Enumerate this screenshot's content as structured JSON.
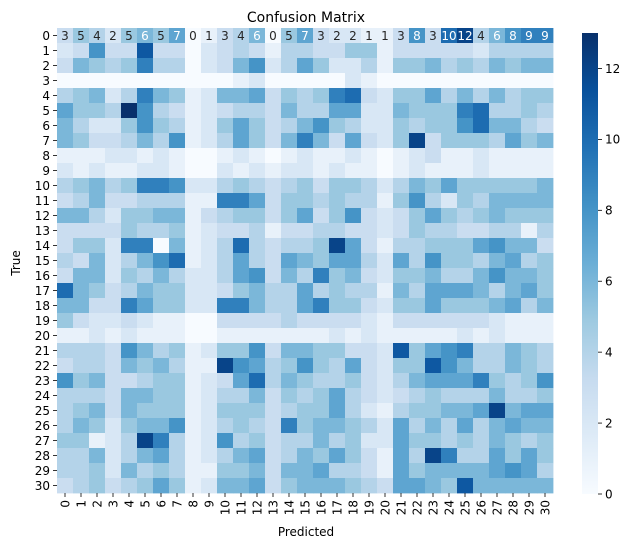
{
  "chart_data": {
    "type": "heatmap",
    "title": "Confusion Matrix",
    "xlabel": "Predicted",
    "ylabel": "True",
    "row_labels": [
      "0",
      "1",
      "2",
      "3",
      "4",
      "5",
      "6",
      "7",
      "8",
      "9",
      "10",
      "11",
      "12",
      "13",
      "14",
      "15",
      "16",
      "17",
      "18",
      "19",
      "20",
      "21",
      "22",
      "23",
      "24",
      "25",
      "26",
      "27",
      "28",
      "29",
      "30"
    ],
    "col_labels": [
      "0",
      "1",
      "2",
      "3",
      "4",
      "5",
      "6",
      "7",
      "8",
      "9",
      "10",
      "11",
      "12",
      "13",
      "14",
      "15",
      "16",
      "17",
      "18",
      "19",
      "20",
      "21",
      "22",
      "23",
      "24",
      "25",
      "26",
      "27",
      "28",
      "29",
      "30"
    ],
    "annotated_row": 0,
    "matrix": [
      [
        3,
        5,
        4,
        2,
        5,
        6,
        5,
        7,
        0,
        1,
        3,
        4,
        6,
        0,
        5,
        7,
        3,
        2,
        2,
        1,
        1,
        3,
        8,
        3,
        10,
        12,
        4,
        6,
        8,
        9,
        9
      ],
      [
        2,
        3,
        8,
        3,
        3,
        11,
        3,
        3,
        0,
        2,
        3,
        4,
        3,
        1,
        4,
        4,
        3,
        3,
        5,
        5,
        1,
        3,
        3,
        3,
        3,
        3,
        2,
        4,
        4,
        4,
        4
      ],
      [
        3,
        6,
        5,
        4,
        5,
        9,
        4,
        4,
        0,
        2,
        3,
        6,
        8,
        2,
        4,
        7,
        5,
        2,
        2,
        4,
        1,
        5,
        5,
        6,
        4,
        5,
        4,
        6,
        5,
        6,
        6
      ],
      [
        0,
        0,
        0,
        0,
        0,
        0,
        0,
        0,
        0,
        0,
        0,
        1,
        2,
        0,
        0,
        0,
        0,
        0,
        2,
        1,
        0,
        0,
        0,
        0,
        0,
        0,
        0,
        0,
        0,
        0,
        0
      ],
      [
        4,
        5,
        6,
        2,
        4,
        9,
        6,
        5,
        1,
        2,
        6,
        6,
        7,
        3,
        5,
        4,
        5,
        9,
        10,
        3,
        2,
        5,
        5,
        7,
        4,
        6,
        4,
        6,
        4,
        5,
        5
      ],
      [
        7,
        5,
        5,
        4,
        13,
        8,
        4,
        3,
        1,
        2,
        3,
        4,
        4,
        3,
        6,
        4,
        4,
        7,
        7,
        2,
        2,
        6,
        5,
        5,
        5,
        9,
        10,
        4,
        4,
        5,
        4
      ],
      [
        6,
        4,
        2,
        2,
        5,
        8,
        5,
        4,
        1,
        2,
        5,
        7,
        5,
        3,
        4,
        6,
        8,
        5,
        4,
        2,
        2,
        5,
        4,
        5,
        5,
        8,
        10,
        6,
        6,
        4,
        3
      ],
      [
        6,
        5,
        3,
        3,
        4,
        6,
        4,
        8,
        1,
        2,
        4,
        7,
        5,
        3,
        6,
        9,
        6,
        3,
        7,
        3,
        2,
        5,
        12,
        3,
        5,
        5,
        5,
        4,
        7,
        5,
        6
      ],
      [
        1,
        1,
        1,
        2,
        2,
        1,
        2,
        1,
        0,
        0,
        1,
        2,
        1,
        0,
        1,
        2,
        1,
        1,
        2,
        1,
        0,
        1,
        2,
        3,
        1,
        1,
        2,
        1,
        1,
        1,
        1
      ],
      [
        2,
        1,
        2,
        1,
        1,
        2,
        2,
        1,
        0,
        0,
        2,
        1,
        2,
        1,
        2,
        2,
        1,
        2,
        1,
        1,
        0,
        1,
        2,
        1,
        1,
        1,
        2,
        1,
        1,
        1,
        1
      ],
      [
        4,
        5,
        6,
        4,
        5,
        9,
        9,
        8,
        2,
        2,
        4,
        5,
        4,
        3,
        4,
        5,
        3,
        5,
        5,
        4,
        2,
        4,
        6,
        5,
        7,
        5,
        5,
        5,
        5,
        5,
        6
      ],
      [
        3,
        4,
        6,
        3,
        3,
        4,
        4,
        4,
        1,
        1,
        9,
        9,
        7,
        3,
        5,
        5,
        4,
        5,
        4,
        4,
        1,
        5,
        8,
        4,
        2,
        5,
        4,
        6,
        6,
        6,
        6
      ],
      [
        6,
        6,
        4,
        2,
        5,
        5,
        6,
        6,
        1,
        3,
        4,
        5,
        5,
        3,
        5,
        7,
        3,
        5,
        8,
        3,
        2,
        3,
        5,
        7,
        5,
        4,
        5,
        6,
        5,
        5,
        5
      ],
      [
        3,
        3,
        3,
        3,
        5,
        4,
        4,
        5,
        1,
        2,
        3,
        3,
        4,
        1,
        3,
        3,
        4,
        4,
        3,
        3,
        2,
        3,
        5,
        4,
        4,
        3,
        3,
        4,
        4,
        1,
        4
      ],
      [
        3,
        5,
        5,
        2,
        9,
        9,
        0,
        6,
        1,
        2,
        4,
        10,
        4,
        3,
        4,
        4,
        5,
        12,
        7,
        3,
        1,
        4,
        4,
        5,
        5,
        5,
        7,
        8,
        6,
        6,
        3
      ],
      [
        4,
        3,
        6,
        2,
        4,
        6,
        8,
        10,
        1,
        2,
        4,
        7,
        4,
        3,
        7,
        6,
        5,
        7,
        7,
        4,
        2,
        7,
        4,
        8,
        5,
        5,
        4,
        6,
        7,
        4,
        5
      ],
      [
        3,
        6,
        6,
        2,
        5,
        4,
        6,
        4,
        2,
        2,
        4,
        7,
        8,
        3,
        6,
        4,
        9,
        5,
        6,
        3,
        2,
        5,
        5,
        6,
        4,
        4,
        6,
        8,
        6,
        6,
        5
      ],
      [
        10,
        6,
        5,
        3,
        4,
        6,
        5,
        5,
        2,
        2,
        3,
        5,
        6,
        4,
        4,
        7,
        4,
        5,
        4,
        4,
        1,
        6,
        4,
        7,
        7,
        7,
        6,
        4,
        6,
        7,
        5
      ],
      [
        6,
        6,
        3,
        3,
        9,
        7,
        5,
        5,
        2,
        2,
        9,
        9,
        6,
        4,
        4,
        7,
        9,
        5,
        5,
        3,
        2,
        5,
        5,
        7,
        5,
        5,
        5,
        6,
        7,
        4,
        6
      ],
      [
        5,
        3,
        2,
        2,
        3,
        2,
        1,
        1,
        0,
        0,
        3,
        3,
        3,
        3,
        4,
        3,
        3,
        3,
        3,
        2,
        1,
        3,
        3,
        3,
        3,
        3,
        3,
        2,
        1,
        1,
        1
      ],
      [
        1,
        1,
        2,
        1,
        2,
        1,
        1,
        1,
        0,
        0,
        1,
        1,
        1,
        1,
        1,
        1,
        1,
        2,
        1,
        2,
        1,
        1,
        1,
        1,
        1,
        2,
        1,
        2,
        1,
        1,
        1
      ],
      [
        4,
        4,
        4,
        3,
        8,
        6,
        4,
        5,
        1,
        2,
        5,
        5,
        8,
        3,
        6,
        6,
        5,
        5,
        3,
        3,
        2,
        11,
        5,
        7,
        8,
        9,
        4,
        4,
        6,
        5,
        4
      ],
      [
        3,
        4,
        4,
        3,
        6,
        5,
        6,
        4,
        1,
        1,
        12,
        8,
        7,
        4,
        5,
        8,
        5,
        4,
        7,
        3,
        2,
        5,
        5,
        11,
        8,
        6,
        4,
        4,
        6,
        5,
        4
      ],
      [
        8,
        5,
        6,
        3,
        3,
        4,
        5,
        5,
        1,
        2,
        3,
        7,
        10,
        4,
        6,
        5,
        4,
        4,
        5,
        3,
        2,
        4,
        6,
        7,
        7,
        7,
        9,
        5,
        4,
        5,
        8
      ],
      [
        4,
        4,
        4,
        3,
        6,
        6,
        5,
        5,
        1,
        2,
        4,
        4,
        6,
        3,
        5,
        4,
        5,
        7,
        4,
        3,
        2,
        3,
        4,
        5,
        4,
        4,
        4,
        6,
        4,
        4,
        5
      ],
      [
        4,
        5,
        6,
        3,
        6,
        5,
        5,
        5,
        1,
        2,
        5,
        5,
        5,
        3,
        4,
        5,
        5,
        7,
        4,
        2,
        1,
        4,
        5,
        5,
        6,
        6,
        7,
        12,
        6,
        7,
        7
      ],
      [
        4,
        6,
        5,
        2,
        5,
        6,
        6,
        8,
        1,
        2,
        4,
        5,
        4,
        3,
        9,
        5,
        6,
        6,
        5,
        4,
        2,
        7,
        4,
        6,
        4,
        7,
        4,
        6,
        7,
        6,
        6
      ],
      [
        5,
        5,
        1,
        2,
        4,
        12,
        9,
        4,
        1,
        2,
        8,
        4,
        5,
        3,
        4,
        4,
        6,
        4,
        5,
        2,
        2,
        7,
        5,
        5,
        4,
        5,
        4,
        6,
        5,
        4,
        5
      ],
      [
        4,
        4,
        6,
        2,
        4,
        6,
        7,
        4,
        1,
        2,
        4,
        6,
        7,
        3,
        4,
        6,
        5,
        7,
        5,
        3,
        1,
        7,
        4,
        12,
        9,
        4,
        4,
        7,
        5,
        7,
        5
      ],
      [
        4,
        4,
        5,
        2,
        6,
        4,
        5,
        4,
        1,
        1,
        5,
        5,
        6,
        3,
        6,
        6,
        7,
        4,
        4,
        3,
        1,
        7,
        5,
        6,
        6,
        6,
        6,
        7,
        8,
        7,
        4
      ],
      [
        3,
        4,
        5,
        3,
        4,
        5,
        7,
        5,
        1,
        2,
        6,
        6,
        7,
        3,
        5,
        6,
        6,
        6,
        5,
        4,
        3,
        7,
        7,
        6,
        5,
        11,
        6,
        6,
        6,
        6,
        6
      ]
    ],
    "colorbar": {
      "min": 0,
      "max": 13,
      "ticks": [
        0,
        2,
        4,
        6,
        8,
        10,
        12
      ]
    },
    "colormap": "Blues",
    "grid": false
  }
}
